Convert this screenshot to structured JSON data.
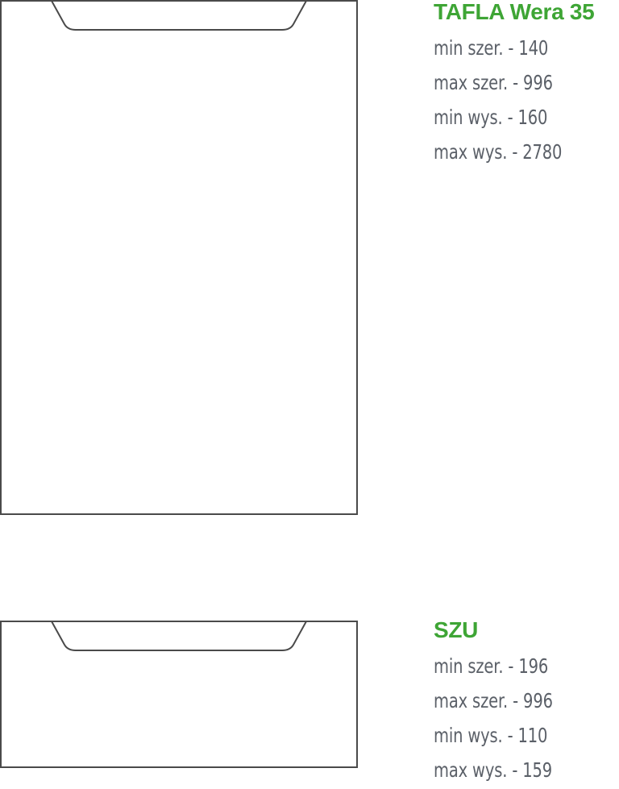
{
  "colors": {
    "title": "#3ea535",
    "text": "#5b6068",
    "outline": "#4a4a4a"
  },
  "panels": [
    {
      "id": "tafla",
      "title": "TAFLA Wera 35",
      "specs": [
        "min szer. - 140",
        "max szer. - 996",
        "min wys. - 160",
        "max wys. - 2780"
      ]
    },
    {
      "id": "szu",
      "title": "SZU",
      "specs": [
        "min szer. - 196",
        "max szer. - 996",
        "min wys. - 110",
        "max wys. - 159"
      ]
    }
  ]
}
